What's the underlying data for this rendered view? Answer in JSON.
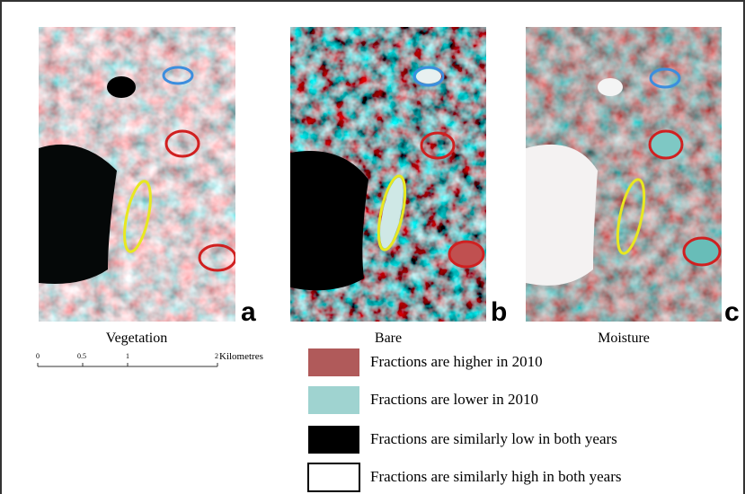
{
  "panels": [
    {
      "label": "a",
      "caption": "Vegetation"
    },
    {
      "label": "b",
      "caption": "Bare"
    },
    {
      "label": "c",
      "caption": "Moisture"
    }
  ],
  "scale_bar": {
    "ticks": [
      "0",
      "0.5",
      "1",
      "2"
    ],
    "unit": "Kilometres"
  },
  "legend": [
    {
      "color": "#b05a5a",
      "text": "Fractions are higher in 2010"
    },
    {
      "color": "#9fd3d0",
      "text": "Fractions are lower in 2010"
    },
    {
      "color": "#000000",
      "text": "Fractions are similarly low in both years"
    },
    {
      "color": "#ffffff",
      "text": "Fractions are similarly high in both years"
    }
  ]
}
